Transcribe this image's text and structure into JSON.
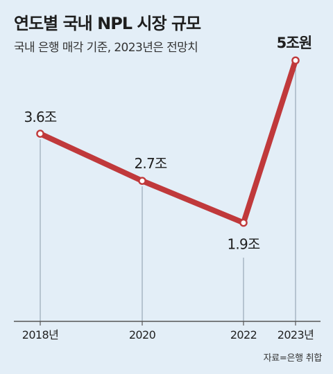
{
  "title": "연도별 국내 NPL 시장 규모",
  "subtitle": "국내 은행 매각 기준, 2023년은 전망치",
  "source": "자료=은행 취합",
  "colors": {
    "background": "#e3eef7",
    "line": "#c0393b",
    "marker_fill": "#ffffff",
    "guide": "#8a9aa8",
    "axis": "#555555"
  },
  "chart_data": {
    "type": "line",
    "title": "연도별 국내 NPL 시장 규모",
    "subtitle": "국내 은행 매각 기준, 2023년은 전망치",
    "xlabel": "",
    "ylabel": "",
    "grid": false,
    "x": [
      2018,
      2020,
      2022,
      2023
    ],
    "tick_labels": [
      "2018년",
      "2020",
      "2022",
      "2023년"
    ],
    "series": [
      {
        "values": [
          3.6,
          2.7,
          1.9,
          5.0
        ],
        "data_labels": [
          "3.6조",
          "2.7조",
          "1.9조",
          "5조원"
        ],
        "highlight_last_label": true
      }
    ]
  }
}
